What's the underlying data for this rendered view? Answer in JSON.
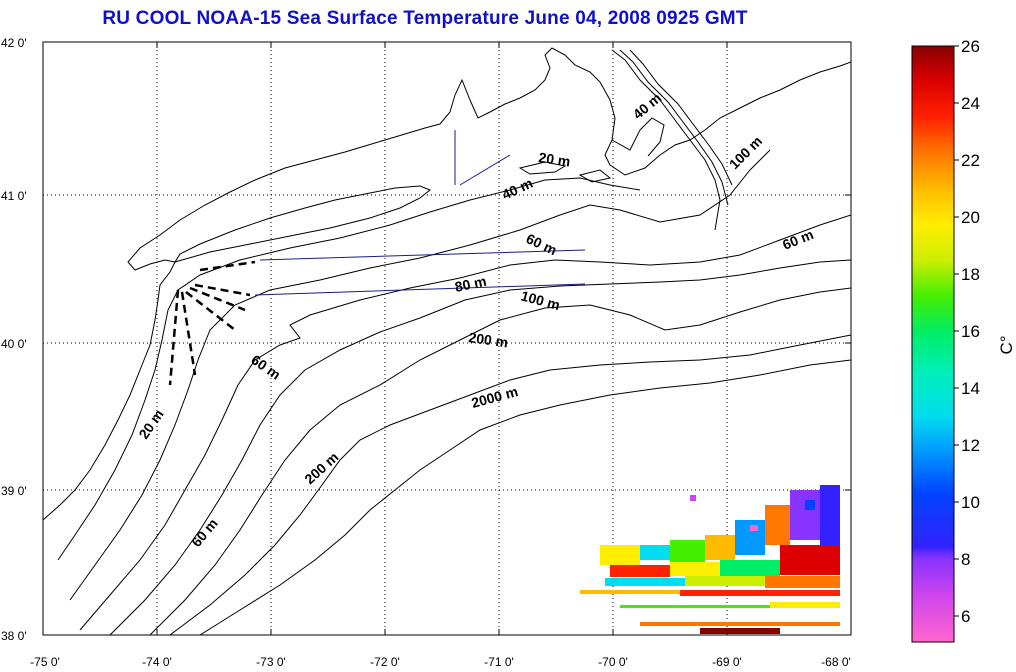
{
  "title": "RU COOL  NOAA-15 Sea Surface Temperature June 04, 2008 0925 GMT",
  "map": {
    "lat_labels": [
      "42 0'",
      "41 0'",
      "40 0'",
      "39 0'",
      "38 0'"
    ],
    "lon_labels": [
      "-75 0'",
      "-74 0'",
      "-73 0'",
      "-72 0'",
      "-71 0'",
      "-70 0'",
      "-69 0'",
      "-68 0'"
    ],
    "grid": true,
    "depth_labels": {
      "d20a": "20 m",
      "d20b": "20 m",
      "d40a": "40 m",
      "d40b": "40 m",
      "d60a": "60 m",
      "d60b": "60 m",
      "d60c": "60 m",
      "d60d": "60 m",
      "d80": "80 m",
      "d100a": "100 m",
      "d100b": "100 m",
      "d200a": "200 m",
      "d200b": "200 m",
      "d2000": "2000 m"
    }
  },
  "colorbar": {
    "label": "C°",
    "ticks": [
      "26",
      "24",
      "22",
      "20",
      "18",
      "16",
      "14",
      "12",
      "10",
      "8",
      "6"
    ],
    "range": [
      5,
      26
    ]
  },
  "colors": {
    "title": "#1010cc",
    "track_lines": "#1a1a8c"
  }
}
